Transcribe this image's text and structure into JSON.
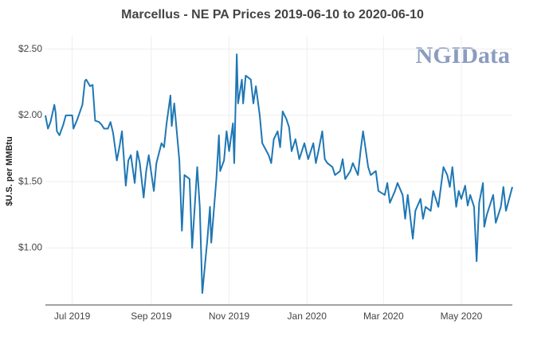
{
  "chart_data": {
    "type": "line",
    "title": "Marcellus - NE PA Prices 2019-06-10 to 2020-06-10",
    "y_label": "$U.S. per MMBtu",
    "watermark": "NGIData",
    "x": [
      "2019-06-10",
      "2019-06-12",
      "2019-06-14",
      "2019-06-17",
      "2019-06-18",
      "2019-06-19",
      "2019-06-21",
      "2019-06-24",
      "2019-06-26",
      "2019-06-28",
      "2019-07-01",
      "2019-07-02",
      "2019-07-05",
      "2019-07-09",
      "2019-07-11",
      "2019-07-12",
      "2019-07-15",
      "2019-07-17",
      "2019-07-19",
      "2019-07-22",
      "2019-07-24",
      "2019-07-26",
      "2019-07-29",
      "2019-07-31",
      "2019-08-02",
      "2019-08-05",
      "2019-08-07",
      "2019-08-09",
      "2019-08-12",
      "2019-08-14",
      "2019-08-16",
      "2019-08-19",
      "2019-08-21",
      "2019-08-23",
      "2019-08-26",
      "2019-08-28",
      "2019-08-30",
      "2019-09-03",
      "2019-09-05",
      "2019-09-09",
      "2019-09-11",
      "2019-09-13",
      "2019-09-16",
      "2019-09-17",
      "2019-09-19",
      "2019-09-23",
      "2019-09-25",
      "2019-09-27",
      "2019-10-01",
      "2019-10-03",
      "2019-10-07",
      "2019-10-09",
      "2019-10-11",
      "2019-10-15",
      "2019-10-17",
      "2019-10-18",
      "2019-10-22",
      "2019-10-24",
      "2019-10-25",
      "2019-10-28",
      "2019-10-30",
      "2019-11-01",
      "2019-11-04",
      "2019-11-05",
      "2019-11-07",
      "2019-11-08",
      "2019-11-11",
      "2019-11-12",
      "2019-11-14",
      "2019-11-18",
      "2019-11-20",
      "2019-11-22",
      "2019-11-25",
      "2019-11-27",
      "2019-12-02",
      "2019-12-04",
      "2019-12-06",
      "2019-12-09",
      "2019-12-11",
      "2019-12-13",
      "2019-12-16",
      "2019-12-18",
      "2019-12-20",
      "2019-12-23",
      "2019-12-26",
      "2019-12-30",
      "2020-01-02",
      "2020-01-06",
      "2020-01-08",
      "2020-01-10",
      "2020-01-13",
      "2020-01-15",
      "2020-01-17",
      "2020-01-21",
      "2020-01-23",
      "2020-01-27",
      "2020-01-29",
      "2020-01-31",
      "2020-02-04",
      "2020-02-06",
      "2020-02-10",
      "2020-02-12",
      "2020-02-14",
      "2020-02-18",
      "2020-02-20",
      "2020-02-24",
      "2020-02-26",
      "2020-03-02",
      "2020-03-04",
      "2020-03-06",
      "2020-03-10",
      "2020-03-12",
      "2020-03-16",
      "2020-03-18",
      "2020-03-20",
      "2020-03-24",
      "2020-03-26",
      "2020-03-30",
      "2020-04-01",
      "2020-04-03",
      "2020-04-07",
      "2020-04-09",
      "2020-04-13",
      "2020-04-15",
      "2020-04-17",
      "2020-04-20",
      "2020-04-22",
      "2020-04-24",
      "2020-04-27",
      "2020-04-29",
      "2020-05-01",
      "2020-05-04",
      "2020-05-06",
      "2020-05-08",
      "2020-05-11",
      "2020-05-13",
      "2020-05-15",
      "2020-05-18",
      "2020-05-19",
      "2020-05-21",
      "2020-05-26",
      "2020-05-28",
      "2020-06-01",
      "2020-06-03",
      "2020-06-05",
      "2020-06-10"
    ],
    "series": [
      {
        "name": "Marcellus - NE PA",
        "color": "#1f77b4",
        "values": [
          2.0,
          1.9,
          1.95,
          2.08,
          2.02,
          1.88,
          1.85,
          1.93,
          2.0,
          2.0,
          2.0,
          1.9,
          1.97,
          2.08,
          2.26,
          2.27,
          2.22,
          2.23,
          1.96,
          1.95,
          1.93,
          1.9,
          1.9,
          1.95,
          1.87,
          1.66,
          1.76,
          1.88,
          1.47,
          1.66,
          1.7,
          1.49,
          1.73,
          1.64,
          1.38,
          1.58,
          1.7,
          1.43,
          1.64,
          1.79,
          1.76,
          1.94,
          2.15,
          1.92,
          2.09,
          1.66,
          1.13,
          1.55,
          1.52,
          1.0,
          1.61,
          1.31,
          0.66,
          1.07,
          1.31,
          1.04,
          1.52,
          1.85,
          1.58,
          1.66,
          1.88,
          1.73,
          1.94,
          1.64,
          2.46,
          2.09,
          2.27,
          2.09,
          2.3,
          2.27,
          2.09,
          2.22,
          2.0,
          1.79,
          1.7,
          1.64,
          1.82,
          1.88,
          1.76,
          2.03,
          1.97,
          1.91,
          1.73,
          1.82,
          1.67,
          1.79,
          1.67,
          1.79,
          1.64,
          1.73,
          1.88,
          1.67,
          1.64,
          1.61,
          1.55,
          1.58,
          1.67,
          1.52,
          1.58,
          1.64,
          1.55,
          1.73,
          1.88,
          1.61,
          1.55,
          1.58,
          1.43,
          1.4,
          1.49,
          1.34,
          1.43,
          1.49,
          1.4,
          1.22,
          1.4,
          1.07,
          1.28,
          1.37,
          1.22,
          1.31,
          1.28,
          1.43,
          1.31,
          1.46,
          1.61,
          1.55,
          1.46,
          1.61,
          1.31,
          1.43,
          1.37,
          1.47,
          1.32,
          1.4,
          1.31,
          0.9,
          1.34,
          1.49,
          1.16,
          1.25,
          1.4,
          1.19,
          1.31,
          1.46,
          1.28,
          1.46
        ]
      }
    ],
    "xlim": [
      "2019-06-10",
      "2020-06-10"
    ],
    "xticks": [
      {
        "value": "2019-07-01",
        "label": "Jul 2019"
      },
      {
        "value": "2019-09-01",
        "label": "Sep 2019"
      },
      {
        "value": "2019-11-01",
        "label": "Nov 2019"
      },
      {
        "value": "2020-01-01",
        "label": "Jan 2020"
      },
      {
        "value": "2020-03-01",
        "label": "Mar 2020"
      },
      {
        "value": "2020-05-01",
        "label": "May 2020"
      }
    ],
    "ylim": [
      0.57,
      2.6
    ],
    "yticks": [
      {
        "value": 1,
        "label": "$1.00"
      },
      {
        "value": 1.5,
        "label": "$1.50"
      },
      {
        "value": 2,
        "label": "$2.00"
      },
      {
        "value": 2.5,
        "label": "$2.50"
      }
    ],
    "grid": true
  }
}
